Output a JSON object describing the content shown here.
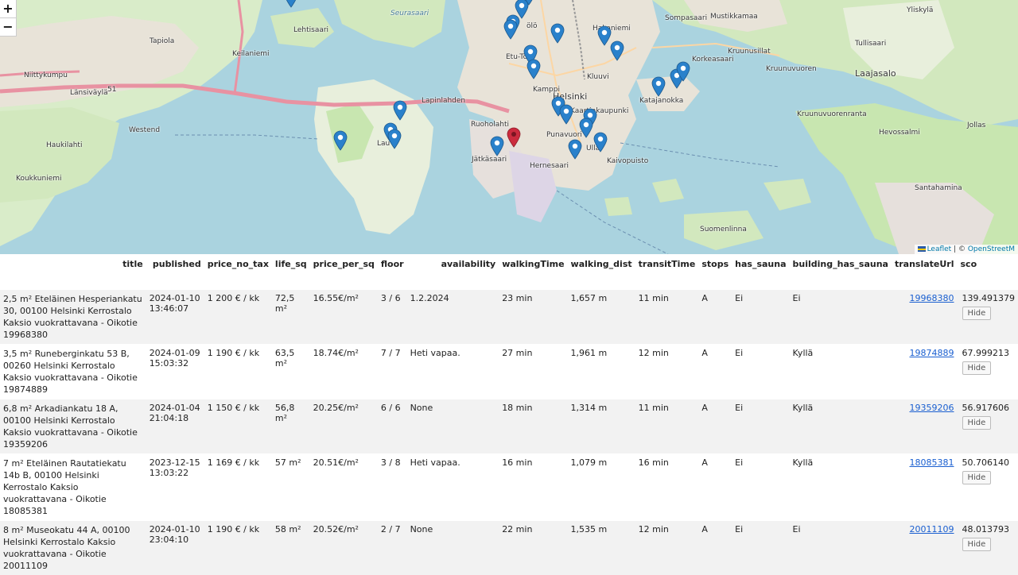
{
  "map": {
    "zoom_in": "+",
    "zoom_out": "−",
    "attribution_leaflet": "Leaflet",
    "attribution_sep": " | © ",
    "attribution_osm": "OpenStreetM",
    "labels": {
      "lehtisaari": "Lehtisaari",
      "tapiola": "Tapiola",
      "niittykumpu": "Niittykumpu",
      "keilaniemi": "Keilaniemi",
      "westend": "Westend",
      "haukilahti": "Haukilahti",
      "koukkuniemi": "Koukkuniemi",
      "helsinki": "Helsinki",
      "hakaniemi": "Hakaniemi",
      "kamppi": "Kamppi",
      "kluuvi": "Kluuvi",
      "kaartinkaupunki": "Kaartinkaupunki",
      "punavuori": "Punavuori",
      "ullanlinna": "Ulla",
      "kaivopuisto": "Kaivopuisto",
      "hernesaari": "Hernesaari",
      "jatkasaari": "Jätkäsaari",
      "ruoholahti": "Ruoholahti",
      "lauttasaari": "Lau",
      "katajanokka": "Katajanokka",
      "suomenlinna": "Suomenlinna",
      "santahamina": "Santahamina",
      "laajasalo": "Laajasalo",
      "sompasaari": "Sompasaari",
      "kruunuvuorenranta": "Kruunuvuorenranta",
      "jollas": "Jollas",
      "hevossalmi": "Hevossalmi",
      "yliskyla": "Yliskylä",
      "tullisaari": "Tullisaari",
      "seurasaari": "Seurasaari",
      "lapinlahden": "Lapinlahden",
      "korkeasaari": "Korkeasaari",
      "vanhankaupunki": "Mustikkamaa",
      "etutoolo": "Etu-Tö",
      "toolo": "ölö",
      "kruunusillat": "Kruunusillat",
      "kruunuvuori": "Kruunuvuoren",
      "lansivayla": "Länsiväylä",
      "ring51": "51"
    }
  },
  "table": {
    "columns": [
      "title",
      "published",
      "price_no_tax",
      "life_sq",
      "price_per_sq",
      "floor",
      "availability",
      "walkingTime",
      "walking_dist",
      "transitTime",
      "stops",
      "has_sauna",
      "building_has_sauna",
      "translateUrl",
      "sco"
    ],
    "rows": [
      {
        "title": "2,5 m² Eteläinen Hesperiankatu 30, 00100 Helsinki Kerrostalo Kaksio vuokrattavana - Oikotie 19968380",
        "published": "2024-01-10 13:46:07",
        "price_no_tax": "1 200 € / kk",
        "life_sq": "72,5 m²",
        "price_per_sq": "16.55€/m²",
        "floor": "3 / 6",
        "availability": "1.2.2024",
        "walkingTime": "23 min",
        "walking_dist": "1,657 m",
        "transitTime": "11 min",
        "stops": "A",
        "has_sauna": "Ei",
        "building_has_sauna": "Ei",
        "translateUrl": "19968380",
        "score": "139.491379",
        "hide": "Hide"
      },
      {
        "title": "3,5 m² Runeberginkatu 53 B, 00260 Helsinki Kerrostalo Kaksio vuokrattavana - Oikotie 19874889",
        "published": "2024-01-09 15:03:32",
        "price_no_tax": "1 190 € / kk",
        "life_sq": "63,5 m²",
        "price_per_sq": "18.74€/m²",
        "floor": "7 / 7",
        "availability": "Heti vapaa.",
        "walkingTime": "27 min",
        "walking_dist": "1,961 m",
        "transitTime": "12 min",
        "stops": "A",
        "has_sauna": "Ei",
        "building_has_sauna": "Kyllä",
        "translateUrl": "19874889",
        "score": "67.999213",
        "hide": "Hide"
      },
      {
        "title": "6,8 m² Arkadiankatu 18 A, 00100 Helsinki Kerrostalo Kaksio vuokrattavana - Oikotie 19359206",
        "published": "2024-01-04 21:04:18",
        "price_no_tax": "1 150 € / kk",
        "life_sq": "56,8 m²",
        "price_per_sq": "20.25€/m²",
        "floor": "6 / 6",
        "availability": "None",
        "walkingTime": "18 min",
        "walking_dist": "1,314 m",
        "transitTime": "11 min",
        "stops": "A",
        "has_sauna": "Ei",
        "building_has_sauna": "Kyllä",
        "translateUrl": "19359206",
        "score": "56.917606",
        "hide": "Hide"
      },
      {
        "title": "7 m² Eteläinen Rautatiekatu 14b B, 00100 Helsinki Kerrostalo Kaksio vuokrattavana - Oikotie 18085381",
        "published": "2023-12-15 13:03:22",
        "price_no_tax": "1 169 € / kk",
        "life_sq": "57 m²",
        "price_per_sq": "20.51€/m²",
        "floor": "3 / 8",
        "availability": "Heti vapaa.",
        "walkingTime": "16 min",
        "walking_dist": "1,079 m",
        "transitTime": "16 min",
        "stops": "A",
        "has_sauna": "Ei",
        "building_has_sauna": "Kyllä",
        "translateUrl": "18085381",
        "score": "50.706140",
        "hide": "Hide"
      },
      {
        "title": "8 m² Museokatu 44 A, 00100 Helsinki Kerrostalo Kaksio vuokrattavana - Oikotie 20011109",
        "published": "2024-01-10 23:04:10",
        "price_no_tax": "1 190 € / kk",
        "life_sq": "58 m²",
        "price_per_sq": "20.52€/m²",
        "floor": "2 / 7",
        "availability": "None",
        "walkingTime": "22 min",
        "walking_dist": "1,535 m",
        "transitTime": "12 min",
        "stops": "A",
        "has_sauna": "Ei",
        "building_has_sauna": "Ei",
        "translateUrl": "20011109",
        "score": "48.013793",
        "hide": "Hide"
      }
    ]
  },
  "colors": {
    "water": "#aad3df",
    "land": "#f2efe9",
    "park": "#c8e6b0",
    "motorway": "#e892a2",
    "pin_blue": "#2a81cb",
    "pin_red": "#cb2b3e",
    "link": "#1a5fd0"
  }
}
